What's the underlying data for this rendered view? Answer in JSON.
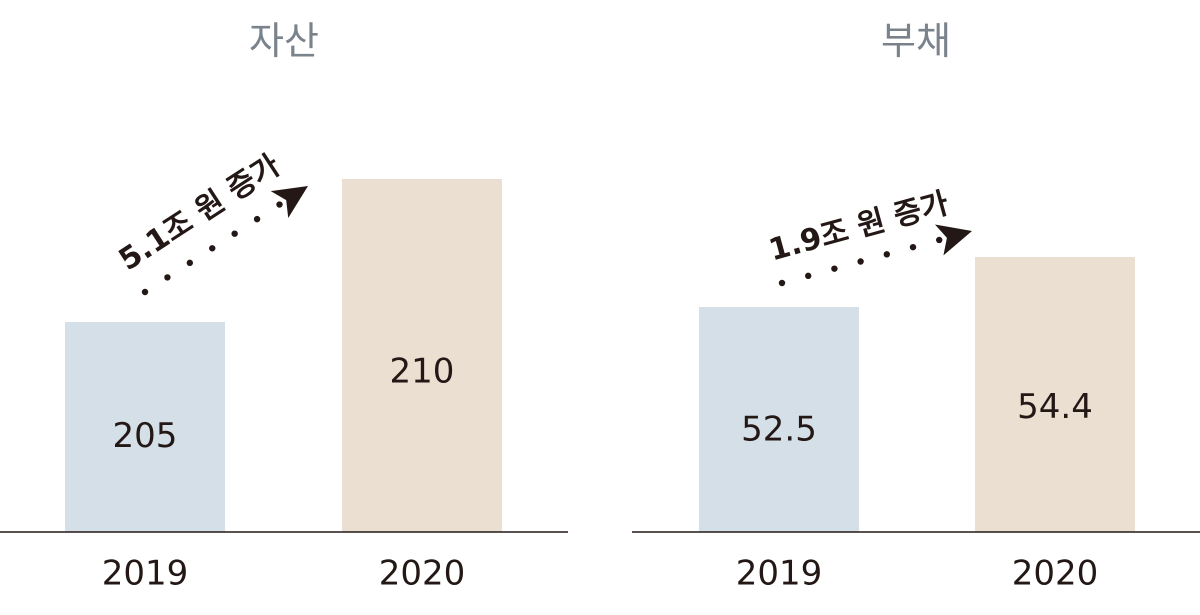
{
  "colors": {
    "bar_2019": "#d5dfe7",
    "bar_2020": "#ebdfd1",
    "axis": "#231815",
    "title": "#7a838c"
  },
  "chart_data": [
    {
      "type": "bar",
      "title": "자산",
      "categories": [
        "2019",
        "2020"
      ],
      "values": [
        205,
        210
      ],
      "value_labels": [
        "205",
        "210"
      ],
      "annotation": "5.1조 원 증가",
      "xlabel": "",
      "ylabel": "",
      "grid": false
    },
    {
      "type": "bar",
      "title": "부채",
      "categories": [
        "2019",
        "2020"
      ],
      "values": [
        52.5,
        54.4
      ],
      "value_labels": [
        "52.5",
        "54.4"
      ],
      "annotation": "1.9조 원 증가",
      "xlabel": "",
      "ylabel": "",
      "grid": false
    }
  ]
}
